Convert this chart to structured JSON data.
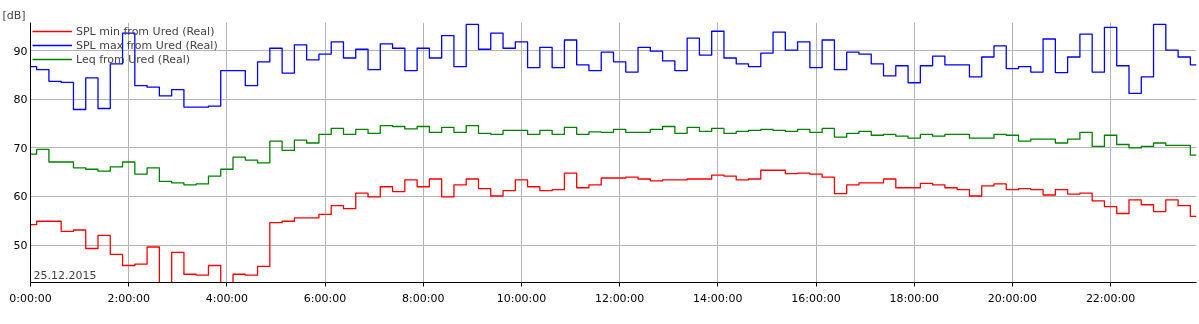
{
  "chart_data": {
    "type": "step",
    "ylabel": "[dB]",
    "xlabel": "25.12.2015",
    "xlim": [
      0,
      23.75
    ],
    "ylim": [
      42.3,
      95.8
    ],
    "xticks": [
      {
        "value": 0,
        "label": "0:00:00"
      },
      {
        "value": 2,
        "label": "2:00:00"
      },
      {
        "value": 4,
        "label": "4:00:00"
      },
      {
        "value": 6,
        "label": "6:00:00"
      },
      {
        "value": 8,
        "label": "8:00:00"
      },
      {
        "value": 10,
        "label": "10:00:00"
      },
      {
        "value": 12,
        "label": "12:00:00"
      },
      {
        "value": 14,
        "label": "14:00:00"
      },
      {
        "value": 16,
        "label": "16:00:00"
      },
      {
        "value": 18,
        "label": "18:00:00"
      },
      {
        "value": 20,
        "label": "20:00:00"
      },
      {
        "value": 22,
        "label": "22:00:00"
      }
    ],
    "yticks": [
      50,
      60,
      70,
      80,
      90
    ],
    "grid": true,
    "legend": "top left",
    "line_style": "solid",
    "x": [
      0,
      0.25,
      0.5,
      0.75,
      1,
      1.25,
      1.5,
      1.75,
      2,
      2.25,
      2.5,
      2.75,
      3,
      3.25,
      3.5,
      3.75,
      4,
      4.25,
      4.5,
      4.75,
      5,
      5.25,
      5.5,
      5.75,
      6,
      6.25,
      6.5,
      6.75,
      7,
      7.25,
      7.5,
      7.75,
      8,
      8.25,
      8.5,
      8.75,
      9,
      9.25,
      9.5,
      9.75,
      10,
      10.25,
      10.5,
      10.75,
      11,
      11.25,
      11.5,
      11.75,
      12,
      12.25,
      12.5,
      12.75,
      13,
      13.25,
      13.5,
      13.75,
      14,
      14.25,
      14.5,
      14.75,
      15,
      15.25,
      15.5,
      15.75,
      16,
      16.25,
      16.5,
      16.75,
      17,
      17.25,
      17.5,
      17.75,
      18,
      18.25,
      18.5,
      18.75,
      19,
      19.25,
      19.5,
      19.75,
      20,
      20.25,
      20.5,
      20.75,
      21,
      21.25,
      21.5,
      21.75,
      22,
      22.25,
      22.5,
      22.75,
      23,
      23.25,
      23.5,
      23.75
    ],
    "series": [
      {
        "name": "SPL min from Ured (Real)",
        "color": "#ff0000",
        "values": [
          54.2,
          54.9,
          54.9,
          52.8,
          53.1,
          49.3,
          52.0,
          48.1,
          45.8,
          46.1,
          49.6,
          null,
          48.5,
          44.0,
          43.8,
          45.8,
          null,
          44.0,
          43.8,
          45.6,
          54.6,
          54.9,
          55.6,
          55.6,
          56.3,
          58.1,
          57.5,
          60.7,
          59.9,
          62.0,
          61.0,
          63.4,
          62.0,
          63.6,
          59.9,
          62.4,
          63.6,
          61.6,
          60.1,
          61.2,
          63.4,
          62.0,
          61.2,
          61.4,
          64.8,
          61.8,
          62.4,
          63.8,
          63.8,
          64.0,
          63.6,
          63.2,
          63.4,
          63.4,
          63.6,
          63.6,
          64.4,
          64.2,
          63.4,
          63.6,
          65.4,
          65.4,
          64.7,
          64.8,
          64.6,
          64.0,
          60.6,
          62.4,
          62.8,
          62.8,
          63.6,
          61.8,
          61.8,
          62.7,
          62.4,
          61.8,
          61.4,
          60.1,
          62.2,
          62.6,
          61.4,
          61.6,
          61.4,
          60.3,
          61.4,
          60.5,
          60.7,
          59.1,
          57.9,
          56.5,
          59.3,
          58.3,
          56.9,
          59.3,
          58.1,
          55.9
        ]
      },
      {
        "name": "SPL max from Ured (Real)",
        "color": "#0000ff",
        "values": [
          86.7,
          86.1,
          83.7,
          83.5,
          77.9,
          84.4,
          78.1,
          87.3,
          93.6,
          82.8,
          82.5,
          80.7,
          82.0,
          78.4,
          78.4,
          78.6,
          85.9,
          85.9,
          82.8,
          87.7,
          90.5,
          85.4,
          91.2,
          88.1,
          89.3,
          91.8,
          88.5,
          90.3,
          86.1,
          91.4,
          90.5,
          85.9,
          90.5,
          88.5,
          93.1,
          86.7,
          95.4,
          90.3,
          93.6,
          90.5,
          91.8,
          86.5,
          90.7,
          86.5,
          92.2,
          87.1,
          85.9,
          89.7,
          87.7,
          85.6,
          90.7,
          89.9,
          87.9,
          85.9,
          92.6,
          89.1,
          94.0,
          88.5,
          87.3,
          86.7,
          89.5,
          93.8,
          90.1,
          91.8,
          86.5,
          92.2,
          86.1,
          89.7,
          89.3,
          87.3,
          84.8,
          86.9,
          83.4,
          86.9,
          88.9,
          87.1,
          87.1,
          84.6,
          88.7,
          91.0,
          86.3,
          86.7,
          85.6,
          92.4,
          85.5,
          88.7,
          93.4,
          85.6,
          94.8,
          86.9,
          81.2,
          84.6,
          95.4,
          90.1,
          88.7,
          87.1
        ]
      },
      {
        "name": "Leq from Ured (Real)",
        "color": "#008000",
        "values": [
          68.7,
          69.7,
          67.1,
          67.1,
          65.9,
          65.6,
          65.2,
          66.1,
          67.1,
          64.6,
          65.9,
          63.1,
          62.8,
          62.4,
          62.6,
          64.2,
          65.6,
          68.1,
          67.5,
          66.9,
          71.4,
          69.5,
          71.6,
          71.0,
          72.8,
          74.0,
          72.8,
          73.8,
          73.0,
          74.6,
          74.4,
          73.9,
          74.4,
          73.2,
          74.2,
          73.2,
          74.6,
          73.0,
          72.8,
          73.6,
          73.6,
          72.8,
          73.6,
          72.8,
          74.2,
          72.8,
          73.3,
          73.2,
          73.8,
          73.2,
          73.2,
          73.8,
          74.4,
          73.0,
          74.2,
          73.4,
          74.0,
          73.0,
          73.4,
          73.6,
          73.8,
          73.6,
          73.4,
          73.8,
          73.2,
          74.0,
          72.2,
          73.0,
          73.4,
          72.6,
          72.8,
          72.4,
          72.0,
          72.8,
          72.4,
          72.8,
          72.8,
          72.0,
          72.0,
          72.8,
          72.6,
          71.4,
          71.8,
          71.8,
          71.0,
          71.8,
          73.2,
          70.3,
          72.6,
          70.7,
          70.0,
          70.3,
          71.0,
          70.5,
          70.5,
          68.5
        ]
      }
    ]
  }
}
